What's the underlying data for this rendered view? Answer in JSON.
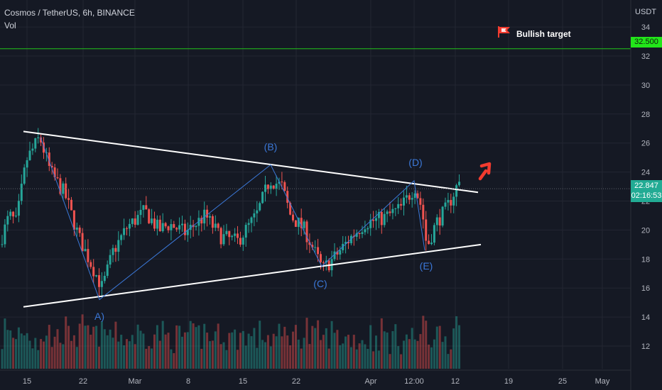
{
  "header": {
    "symbol_line": "Cosmos / TetherUS, 6h, BINANCE",
    "volume_label": "Vol",
    "currency": "USDT"
  },
  "annotation": {
    "target_text": "Bullish target",
    "target_price": "32.500",
    "current_price": "22.847",
    "countdown": "02:16:53"
  },
  "colors": {
    "background": "#151924",
    "grid": "#232632",
    "up": "#26a69a",
    "down": "#ef5350",
    "wave": "#3b78d8",
    "trendline": "#ffffff",
    "target_line": "#22c41a",
    "arrow": "#f23b2f"
  },
  "chart_data": {
    "type": "candlestick",
    "interval": "6h",
    "y_ticks": [
      12,
      14,
      16,
      18,
      20,
      22,
      24,
      26,
      28,
      30,
      32,
      34
    ],
    "x_ticks": [
      "15",
      "22",
      "Mar",
      "8",
      "15",
      "22",
      "Apr",
      "12:00",
      "12",
      "19",
      "25",
      "May"
    ],
    "ylim": [
      10.5,
      35
    ],
    "target_price": 32.5,
    "last_price": 22.847,
    "waves": [
      {
        "label": "A)",
        "price": 15.2
      },
      {
        "label": "(B)",
        "price": 24.5
      },
      {
        "label": "(C)",
        "price": 17.5
      },
      {
        "label": "(D)",
        "price": 23.4
      },
      {
        "label": "(E)",
        "price": 18.6
      }
    ],
    "upper_trendline": [
      26.8,
      22.6
    ],
    "lower_trendline": [
      14.7,
      19.0
    ]
  }
}
